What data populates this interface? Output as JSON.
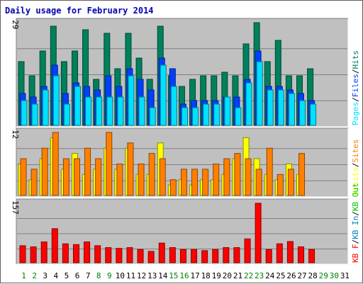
{
  "title": "Daily usage for February 2014",
  "colors": {
    "background": "#c0c0c0",
    "hits": "#00805c",
    "files": "#0040ff",
    "pages": "#00e0ff",
    "visits": "#ffff00",
    "sites": "#ff8000",
    "kb_out": "#00c000",
    "kb_in": "#0080c0",
    "kb_f": "#ff0000"
  },
  "chart_data": [
    {
      "type": "bar",
      "title": "Daily usage for February 2014",
      "ymax_label": "29",
      "ylim": [
        0,
        29
      ],
      "legend": [
        "Pages",
        "Files",
        "Hits"
      ],
      "legend_separator": "/",
      "categories": [
        "1",
        "2",
        "3",
        "4",
        "5",
        "6",
        "7",
        "8",
        "9",
        "10",
        "11",
        "12",
        "13",
        "14",
        "15",
        "16",
        "17",
        "18",
        "19",
        "20",
        "21",
        "22",
        "23",
        "24",
        "25",
        "26",
        "27",
        "28",
        "29",
        "30",
        "31"
      ],
      "series": [
        {
          "name": "Hits",
          "values": [
            18,
            14,
            21,
            28,
            18,
            21,
            27,
            13,
            26,
            16,
            26,
            19,
            13,
            28,
            14,
            11,
            13,
            14,
            14,
            15,
            14,
            23,
            29,
            18,
            24,
            14,
            14,
            16,
            0,
            0,
            0
          ]
        },
        {
          "name": "Files",
          "values": [
            9,
            8,
            11,
            17,
            9,
            12,
            11,
            10,
            14,
            11,
            16,
            13,
            10,
            19,
            16,
            6,
            7,
            7,
            7,
            8,
            8,
            13,
            21,
            11,
            11,
            10,
            9,
            7,
            0,
            0,
            0
          ]
        },
        {
          "name": "Pages",
          "values": [
            7,
            6,
            10,
            14,
            6,
            11,
            8,
            8,
            8,
            8,
            14,
            8,
            5,
            17,
            11,
            5,
            5,
            6,
            6,
            8,
            5,
            12,
            18,
            10,
            10,
            9,
            7,
            6,
            0,
            0,
            0
          ]
        }
      ]
    },
    {
      "type": "bar",
      "ymax_label": "12",
      "ylim": [
        0,
        12
      ],
      "legend": [
        "Visits",
        "Sites"
      ],
      "legend_separator": "/",
      "series": [
        {
          "name": "Visits",
          "values": [
            6,
            3,
            7,
            11,
            5,
            8,
            4,
            5,
            9,
            5,
            9,
            4,
            4,
            10,
            2,
            3,
            2,
            3,
            3,
            4,
            7,
            11,
            7,
            4,
            3,
            6,
            4,
            0,
            0,
            0,
            0
          ]
        },
        {
          "name": "Sites",
          "values": [
            7,
            5,
            9,
            12,
            7,
            7,
            9,
            7,
            12,
            6,
            10,
            6,
            8,
            7,
            3,
            5,
            5,
            5,
            6,
            7,
            8,
            7,
            5,
            9,
            4,
            5,
            8,
            0,
            0,
            0,
            0
          ]
        }
      ]
    },
    {
      "type": "bar",
      "ymax_label": "157",
      "ylim": [
        0,
        157
      ],
      "legend": [
        "KB F",
        "KB In",
        "KB Out"
      ],
      "legend_separator": "/",
      "series": [
        {
          "name": "KB F",
          "values": [
            45,
            42,
            55,
            90,
            50,
            48,
            55,
            45,
            40,
            38,
            40,
            35,
            30,
            52,
            40,
            35,
            35,
            32,
            35,
            40,
            40,
            63,
            157,
            35,
            50,
            56,
            42,
            35,
            0,
            0,
            0
          ]
        }
      ]
    }
  ]
}
